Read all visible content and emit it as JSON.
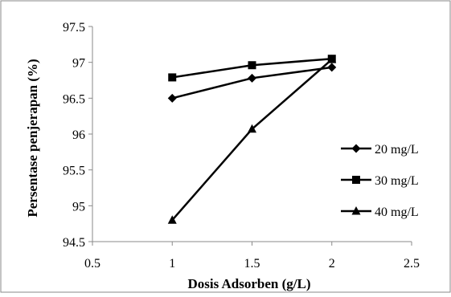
{
  "chart_data": {
    "type": "line",
    "title": "",
    "xlabel": "Dosis Adsorben (g/L)",
    "ylabel": "Persentase penjerapan (%)",
    "xlim": [
      0.5,
      2.5
    ],
    "ylim": [
      94.5,
      97.5
    ],
    "xticks": [
      "0.5",
      "1",
      "1.5",
      "2",
      "2.5"
    ],
    "yticks": [
      "94.5",
      "95",
      "95.5",
      "96",
      "96.5",
      "97",
      "97.5"
    ],
    "grid": false,
    "legend_position": "right",
    "series": [
      {
        "name": "20 mg/L",
        "marker": "diamond",
        "color": "#000000",
        "x": [
          1,
          1.5,
          2
        ],
        "y": [
          96.5,
          96.78,
          96.93
        ]
      },
      {
        "name": "30 mg/L",
        "marker": "square",
        "color": "#000000",
        "x": [
          1,
          1.5,
          2
        ],
        "y": [
          96.79,
          96.96,
          97.05
        ]
      },
      {
        "name": "40 mg/L",
        "marker": "triangle",
        "color": "#000000",
        "x": [
          1,
          1.5,
          2
        ],
        "y": [
          94.8,
          96.07,
          97.04
        ]
      }
    ]
  }
}
